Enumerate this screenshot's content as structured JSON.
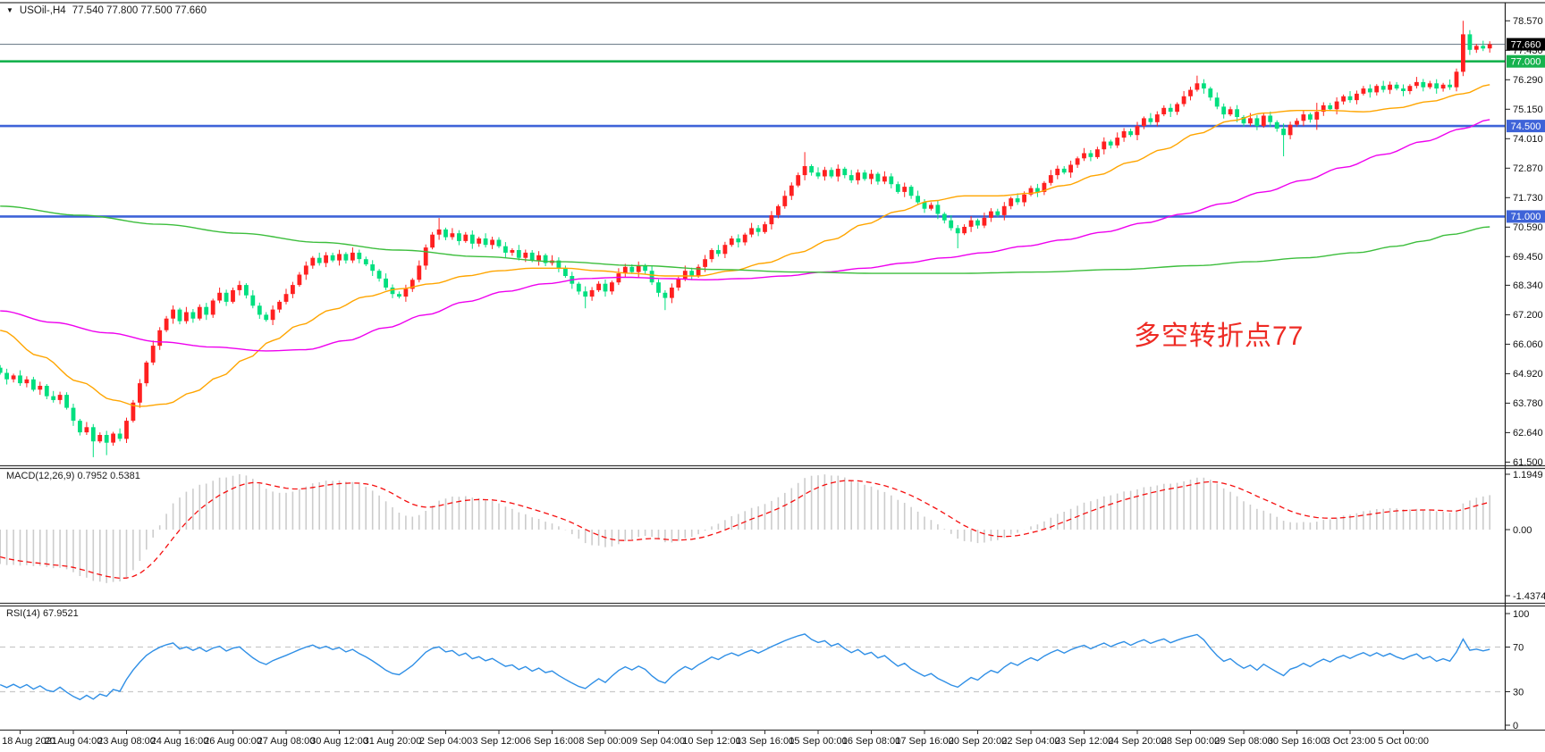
{
  "header": {
    "symbol_timeframe": "USOil-,H4",
    "ohlc": "77.540 77.800 77.500 77.660"
  },
  "annotation": {
    "text": "多空转折点77",
    "color": "#ee2b24"
  },
  "indicators": {
    "macd_label": "MACD(12,26,9) 0.7952 0.5381",
    "rsi_label": "RSI(14) 67.9521"
  },
  "chart_data": {
    "type": "candlestick",
    "symbol": "USOil-",
    "timeframe": "H4",
    "current_quote": {
      "open": "77.540",
      "high": "77.800",
      "low": "77.500",
      "close": "77.660"
    },
    "ylim": [
      61.5,
      78.57
    ],
    "colors": {
      "up_candle": "#ff2020",
      "down_candle": "#00df7f",
      "ma_fast": "#ffa500",
      "ma_mid": "#ee00ee",
      "ma_slow": "#3dbe3d",
      "level_green": "#16b24e",
      "level_blue": "#3e63d8",
      "price_line": "#74828e",
      "macd_hist": "#cccccc",
      "macd_signal": "#f50f0f",
      "rsi_line": "#2f8fe6",
      "annotation_red": "#ee2b24"
    },
    "price_axis_labels": [
      "78.570",
      "77.430",
      "76.290",
      "75.150",
      "74.010",
      "72.870",
      "71.730",
      "70.590",
      "69.450",
      "68.340",
      "67.200",
      "66.060",
      "64.920",
      "63.780",
      "62.640",
      "61.500"
    ],
    "badges": [
      {
        "label": "77.660",
        "bg": "#000000",
        "price": 77.66
      },
      {
        "label": "77.000",
        "bg": "#16b24e",
        "price": 77.0
      },
      {
        "label": "74.500",
        "bg": "#3e63d8",
        "price": 74.5
      },
      {
        "label": "71.000",
        "bg": "#3e63d8",
        "price": 71.0
      }
    ],
    "hlines": [
      {
        "price": 77.0,
        "color": "#16b24e",
        "width": 2.6
      },
      {
        "price": 74.5,
        "color": "#3e63d8",
        "width": 2.6
      },
      {
        "price": 71.0,
        "color": "#3e63d8",
        "width": 2.6
      }
    ],
    "price_line": {
      "price": 77.66,
      "color": "#74828e",
      "width": 1.1
    },
    "time_labels": [
      "18 Aug 2021",
      "20 Aug 04:00",
      "23 Aug 08:00",
      "24 Aug 16:00",
      "26 Aug 00:00",
      "27 Aug 08:00",
      "30 Aug 12:00",
      "31 Aug 20:00",
      "2 Sep 04:00",
      "3 Sep 12:00",
      "6 Sep 16:00",
      "8 Sep 00:00",
      "9 Sep 04:00",
      "10 Sep 12:00",
      "13 Sep 16:00",
      "15 Sep 00:00",
      "16 Sep 08:00",
      "17 Sep 16:00",
      "20 Sep 20:00",
      "22 Sep 04:00",
      "23 Sep 12:00",
      "24 Sep 20:00",
      "28 Sep 00:00",
      "29 Sep 08:00",
      "30 Sep 16:00",
      "3 Oct 23:00",
      "5 Oct 00:00"
    ],
    "candles": {
      "first_open": 65.15,
      "closes": [
        64.95,
        64.7,
        64.85,
        64.55,
        64.7,
        64.3,
        64.45,
        64.05,
        63.9,
        64.1,
        63.6,
        63.1,
        62.65,
        62.85,
        62.3,
        62.55,
        62.25,
        62.6,
        62.4,
        63.1,
        63.8,
        64.55,
        65.35,
        66.0,
        66.6,
        67.05,
        67.4,
        66.95,
        67.3,
        67.05,
        67.5,
        67.2,
        67.75,
        68.05,
        67.7,
        68.15,
        68.35,
        67.95,
        67.55,
        67.2,
        67.0,
        67.4,
        67.7,
        68.0,
        68.35,
        68.75,
        69.1,
        69.4,
        69.2,
        69.5,
        69.3,
        69.55,
        69.3,
        69.6,
        69.35,
        69.15,
        68.9,
        68.6,
        68.25,
        68.0,
        67.9,
        68.2,
        68.55,
        69.1,
        69.8,
        70.3,
        70.5,
        70.2,
        70.35,
        70.05,
        70.3,
        69.95,
        70.15,
        69.9,
        70.1,
        69.85,
        69.6,
        69.7,
        69.4,
        69.6,
        69.3,
        69.5,
        69.2,
        69.3,
        69.0,
        68.7,
        68.4,
        68.1,
        67.9,
        68.15,
        68.4,
        68.1,
        68.45,
        68.8,
        69.05,
        68.85,
        69.1,
        68.9,
        68.45,
        68.05,
        67.85,
        68.25,
        68.6,
        68.9,
        68.7,
        69.05,
        69.35,
        69.7,
        69.55,
        69.9,
        70.15,
        70.0,
        70.3,
        70.55,
        70.4,
        70.7,
        71.05,
        71.4,
        71.8,
        72.2,
        72.6,
        72.95,
        72.7,
        72.55,
        72.8,
        72.55,
        72.85,
        72.6,
        72.4,
        72.7,
        72.45,
        72.65,
        72.35,
        72.55,
        72.25,
        71.95,
        72.15,
        71.8,
        71.55,
        71.3,
        71.45,
        71.1,
        70.85,
        70.55,
        70.35,
        70.6,
        70.85,
        70.65,
        70.95,
        71.2,
        71.05,
        71.4,
        71.7,
        71.55,
        71.85,
        72.1,
        71.95,
        72.3,
        72.6,
        72.85,
        72.7,
        73.0,
        73.25,
        73.45,
        73.3,
        73.6,
        73.9,
        73.75,
        74.05,
        74.3,
        74.15,
        74.5,
        74.8,
        74.65,
        74.95,
        75.2,
        75.05,
        75.35,
        75.65,
        75.9,
        76.15,
        75.95,
        75.6,
        75.25,
        74.95,
        75.15,
        74.85,
        74.6,
        74.8,
        74.5,
        74.9,
        74.65,
        74.4,
        74.15,
        74.55,
        74.7,
        74.95,
        74.75,
        75.05,
        75.3,
        75.15,
        75.45,
        75.65,
        75.5,
        75.75,
        75.95,
        75.8,
        76.05,
        75.9,
        76.1,
        75.95,
        75.85,
        76.05,
        76.2,
        76.0,
        76.15,
        75.95,
        76.1,
        76.0,
        76.6,
        78.05,
        77.45,
        77.6,
        77.5,
        77.66
      ],
      "wick_overrides": {
        "14": [
          0,
          0.45
        ],
        "16": [
          0,
          0.28
        ],
        "66": [
          0.28,
          0
        ],
        "88": [
          0,
          0.35
        ],
        "100": [
          0,
          0.4
        ],
        "121": [
          0.38,
          0
        ],
        "144": [
          0,
          0.42
        ],
        "180": [
          0.2,
          0
        ],
        "193": [
          0,
          0.72
        ],
        "198": [
          0.15,
          0.3
        ],
        "220": [
          0.42,
          0.1
        ]
      }
    },
    "moving_averages": [
      {
        "name": "ma-fast-orange",
        "color": "#ffa500",
        "points": [
          [
            0,
            66.6
          ],
          [
            6,
            65.6
          ],
          [
            12,
            64.6
          ],
          [
            17,
            63.9
          ],
          [
            21,
            63.65
          ],
          [
            25,
            63.75
          ],
          [
            29,
            64.2
          ],
          [
            33,
            64.8
          ],
          [
            37,
            65.5
          ],
          [
            41,
            66.2
          ],
          [
            45,
            66.8
          ],
          [
            50,
            67.4
          ],
          [
            55,
            67.9
          ],
          [
            60,
            68.2
          ],
          [
            65,
            68.4
          ],
          [
            70,
            68.7
          ],
          [
            75,
            68.9
          ],
          [
            80,
            69.0
          ],
          [
            85,
            69.0
          ],
          [
            90,
            68.9
          ],
          [
            95,
            68.8
          ],
          [
            100,
            68.7
          ],
          [
            105,
            68.7
          ],
          [
            110,
            68.9
          ],
          [
            115,
            69.2
          ],
          [
            120,
            69.6
          ],
          [
            125,
            70.1
          ],
          [
            130,
            70.7
          ],
          [
            135,
            71.2
          ],
          [
            140,
            71.6
          ],
          [
            145,
            71.8
          ],
          [
            150,
            71.8
          ],
          [
            155,
            71.9
          ],
          [
            160,
            72.2
          ],
          [
            165,
            72.6
          ],
          [
            170,
            73.1
          ],
          [
            175,
            73.6
          ],
          [
            180,
            74.2
          ],
          [
            185,
            74.7
          ],
          [
            190,
            75.0
          ],
          [
            195,
            75.1
          ],
          [
            200,
            75.1
          ],
          [
            205,
            75.05
          ],
          [
            210,
            75.2
          ],
          [
            215,
            75.45
          ],
          [
            220,
            75.75
          ],
          [
            224,
            76.1
          ]
        ]
      },
      {
        "name": "ma-mid-magenta",
        "color": "#ee00ee",
        "points": [
          [
            0,
            67.35
          ],
          [
            8,
            66.9
          ],
          [
            16,
            66.5
          ],
          [
            24,
            66.15
          ],
          [
            32,
            65.95
          ],
          [
            40,
            65.8
          ],
          [
            46,
            65.85
          ],
          [
            52,
            66.2
          ],
          [
            58,
            66.7
          ],
          [
            64,
            67.2
          ],
          [
            70,
            67.7
          ],
          [
            76,
            68.1
          ],
          [
            82,
            68.4
          ],
          [
            88,
            68.6
          ],
          [
            94,
            68.65
          ],
          [
            100,
            68.6
          ],
          [
            106,
            68.55
          ],
          [
            112,
            68.6
          ],
          [
            118,
            68.7
          ],
          [
            124,
            68.85
          ],
          [
            130,
            69.0
          ],
          [
            136,
            69.2
          ],
          [
            142,
            69.4
          ],
          [
            148,
            69.6
          ],
          [
            154,
            69.85
          ],
          [
            160,
            70.1
          ],
          [
            166,
            70.4
          ],
          [
            172,
            70.75
          ],
          [
            178,
            71.1
          ],
          [
            184,
            71.5
          ],
          [
            190,
            71.95
          ],
          [
            196,
            72.4
          ],
          [
            202,
            72.9
          ],
          [
            208,
            73.4
          ],
          [
            214,
            73.9
          ],
          [
            220,
            74.4
          ],
          [
            224,
            74.75
          ]
        ]
      },
      {
        "name": "ma-slow-green",
        "color": "#3dbe3d",
        "points": [
          [
            0,
            71.4
          ],
          [
            12,
            71.05
          ],
          [
            24,
            70.7
          ],
          [
            36,
            70.35
          ],
          [
            48,
            70.0
          ],
          [
            60,
            69.7
          ],
          [
            72,
            69.45
          ],
          [
            84,
            69.25
          ],
          [
            96,
            69.1
          ],
          [
            108,
            68.95
          ],
          [
            120,
            68.85
          ],
          [
            132,
            68.8
          ],
          [
            144,
            68.8
          ],
          [
            156,
            68.85
          ],
          [
            168,
            68.95
          ],
          [
            180,
            69.1
          ],
          [
            188,
            69.25
          ],
          [
            196,
            69.4
          ],
          [
            204,
            69.6
          ],
          [
            210,
            69.85
          ],
          [
            214,
            70.05
          ],
          [
            218,
            70.3
          ],
          [
            224,
            70.6
          ]
        ]
      }
    ],
    "macd": {
      "params": "12,26,9",
      "current_macd": "0.7952",
      "current_signal": "0.5381",
      "scale_labels": [
        "1.1949",
        "0.00",
        "-1.4374"
      ],
      "seeds": {
        "ema_fast": 65.6,
        "ema_slow": 66.2,
        "signal": -0.45
      }
    },
    "rsi": {
      "period": 14,
      "current": "67.9521",
      "scale_labels": [
        "100",
        "70",
        "30",
        "0"
      ],
      "level_lines": [
        70,
        30
      ],
      "seeds": {
        "avg_gain": 0.1,
        "avg_loss": 0.16
      }
    }
  }
}
